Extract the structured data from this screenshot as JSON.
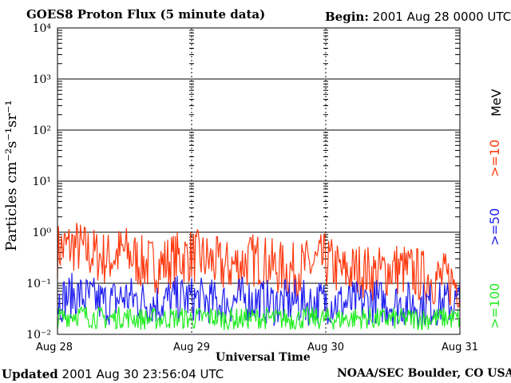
{
  "header": {
    "title": "GOES8 Proton Flux (5 minute data)",
    "begin_label": "Begin:",
    "begin_value": "2001 Aug 28 0000 UTC"
  },
  "footer": {
    "updated_label": "Updated",
    "updated_value": "2001 Aug 30 23:56:04 UTC",
    "credit": "NOAA/SEC Boulder, CO USA"
  },
  "legend": {
    "unit": "MeV",
    "items": [
      {
        "label": ">=10",
        "color": "#ff3a10"
      },
      {
        "label": ">=50",
        "color": "#2020f0"
      },
      {
        "label": ">=100",
        "color": "#22ee22"
      }
    ]
  },
  "chart_data": {
    "type": "line",
    "title": "GOES8 Proton Flux (5 minute data)",
    "xlabel": "Universal Time",
    "ylabel": "Particles cm⁻²s⁻¹sr⁻¹",
    "y_scale": "log",
    "ylim": [
      0.01,
      10000
    ],
    "y_ticks": [
      {
        "value": 10000,
        "label": "10⁴"
      },
      {
        "value": 1000,
        "label": "10³"
      },
      {
        "value": 100,
        "label": "10²"
      },
      {
        "value": 10,
        "label": "10¹"
      },
      {
        "value": 1,
        "label": "10⁰"
      },
      {
        "value": 0.1,
        "label": "10⁻¹"
      },
      {
        "value": 0.01,
        "label": "10⁻²"
      }
    ],
    "x_ticks": [
      "Aug 28",
      "Aug 29",
      "Aug 30",
      "Aug 31"
    ],
    "xlim": [
      "2001-08-28",
      "2001-08-31"
    ],
    "x": [
      "2001-08-28 00:00",
      "2001-08-28 03:00",
      "2001-08-28 06:00",
      "2001-08-28 09:00",
      "2001-08-28 12:00",
      "2001-08-28 15:00",
      "2001-08-28 18:00",
      "2001-08-28 21:00",
      "2001-08-29 00:00",
      "2001-08-29 03:00",
      "2001-08-29 06:00",
      "2001-08-29 09:00",
      "2001-08-29 12:00",
      "2001-08-29 15:00",
      "2001-08-29 18:00",
      "2001-08-29 21:00",
      "2001-08-30 00:00",
      "2001-08-30 03:00",
      "2001-08-30 06:00",
      "2001-08-30 09:00",
      "2001-08-30 12:00",
      "2001-08-30 15:00",
      "2001-08-30 18:00",
      "2001-08-30 21:00",
      "2001-08-31 00:00"
    ],
    "series": [
      {
        "name": ">=10 MeV",
        "color": "#ff3a10",
        "values": [
          0.45,
          0.55,
          0.38,
          0.3,
          0.42,
          0.25,
          0.22,
          0.3,
          0.35,
          0.28,
          0.2,
          0.25,
          0.3,
          0.2,
          0.18,
          0.22,
          0.28,
          0.16,
          0.18,
          0.15,
          0.2,
          0.17,
          0.13,
          0.12,
          0.1
        ]
      },
      {
        "name": ">=50 MeV",
        "color": "#2020f0",
        "values": [
          0.045,
          0.06,
          0.05,
          0.04,
          0.055,
          0.045,
          0.04,
          0.05,
          0.05,
          0.045,
          0.04,
          0.05,
          0.045,
          0.04,
          0.045,
          0.04,
          0.045,
          0.04,
          0.04,
          0.045,
          0.04,
          0.04,
          0.038,
          0.04,
          0.04
        ]
      },
      {
        "name": ">=100 MeV",
        "color": "#22ee22",
        "values": [
          0.02,
          0.025,
          0.022,
          0.02,
          0.022,
          0.02,
          0.02,
          0.021,
          0.02,
          0.022,
          0.02,
          0.02,
          0.021,
          0.02,
          0.02,
          0.021,
          0.02,
          0.02,
          0.021,
          0.02,
          0.02,
          0.02,
          0.02,
          0.021,
          0.02
        ]
      }
    ],
    "grid": true
  }
}
